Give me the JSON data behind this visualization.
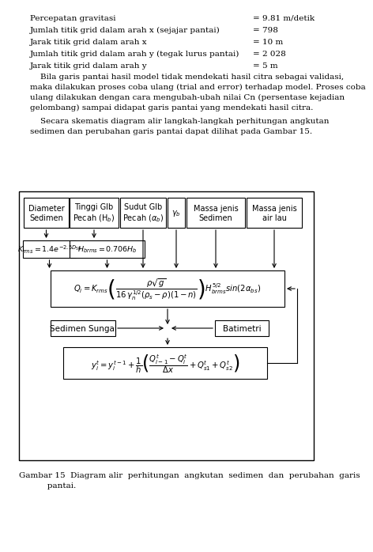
{
  "table_rows": [
    [
      "Percepatan gravitasi",
      "= 9.81 m/detik"
    ],
    [
      "Jumlah titik grid dalam arah x (sejajar pantai)",
      "= 798"
    ],
    [
      "Jarak titik grid dalam arah x",
      "= 10 m"
    ],
    [
      "Jumlah titik grid dalam arah y (tegak lurus pantai)",
      "= 2 028"
    ],
    [
      "Jarak titik grid dalam arah y",
      "= 5 m"
    ]
  ],
  "para1": "    Bila garis pantai hasil model tidak mendekati hasil citra sebagai validasi,\nmaka dilakukan proses coba ulang (trial and error) terhadap model. Proses coba\nulang dilakukan dengan cara mengubah-ubah nilai Cn (persentase kejadian\ngelombang) sampai didapat garis pantai yang mendekati hasil citra.",
  "para2": "    Secara skematis diagram alir langkah-langkah perhitungan angkutan\nsedimen dan perubahan garis pantai dapat dilihat pada Gambar 15.",
  "header_labels": [
    "Diameter\nSedimen",
    "Tinggi Glb\nPecah (H$_b$)",
    "Sudut Glb\nPecah ($\\alpha_b$)",
    "$\\gamma_b$",
    "Massa jenis\nSedimen",
    "Massa jenis\nair lau"
  ],
  "eq1_text": "$K_{rms} = 1.4e^{-2.5D_{50}}$",
  "eq2_text": "$H_{brms} = 0.706H_b$",
  "eq3_text": "$Q_i = K_{rms}\\left(\\dfrac{\\rho\\sqrt{g}}{16\\,\\gamma_n^{1/2}(\\rho_s - \\rho)(1-n)}\\right)H_{brms}^{5/2}sin(2\\alpha_{bs})$",
  "eq4_text": "$y_i^t = y_i^{t-1} + \\dfrac{1}{h}\\left(\\dfrac{Q_{i-1}^t - Q_i^t}{\\Delta x} + Q_{s1}^t + Q_{s2}^t\\right)$",
  "label_sedimen": "Sedimen Sungai",
  "label_batimetri": "Batimetri",
  "caption": "Gambar 15  Diagram alir  perhitungan  angkutan  sedimen  dan  perubahan  garis\n           pantai.",
  "bg_color": "#ffffff",
  "box_color": "#ffffff",
  "border_color": "#000000",
  "text_color": "#000000"
}
